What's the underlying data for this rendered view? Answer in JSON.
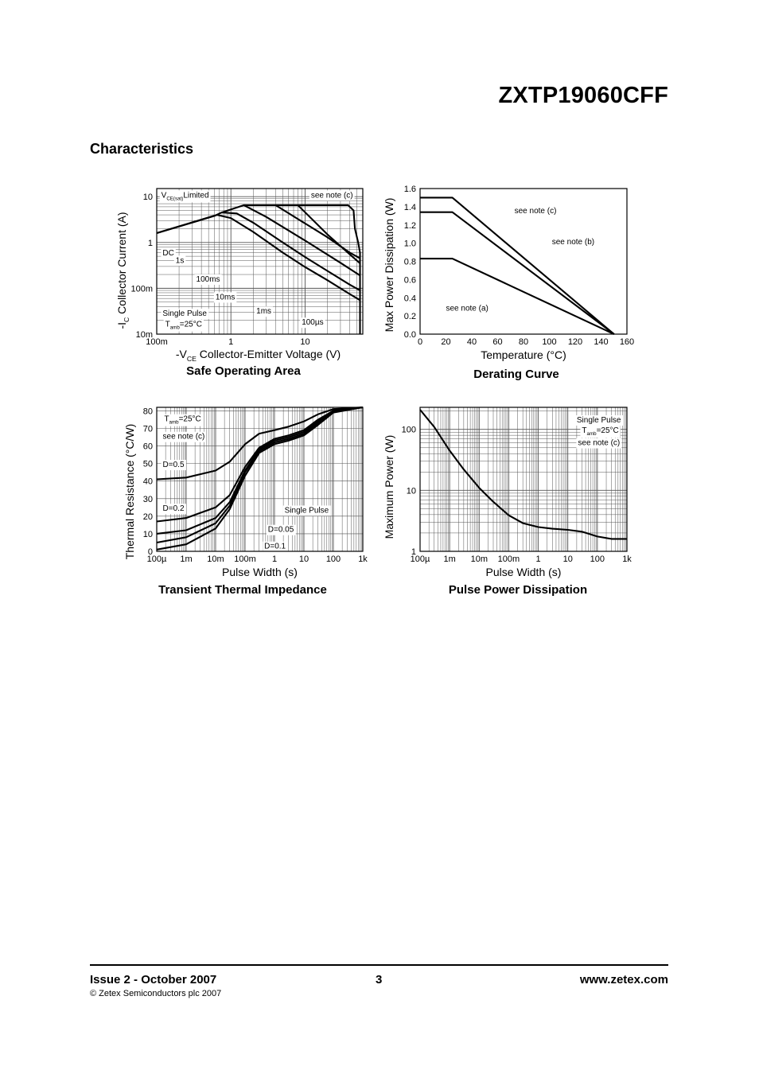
{
  "header": {
    "part_number": "ZXTP19060CFF",
    "section_title": "Characteristics"
  },
  "footer": {
    "issue": "Issue 2 - October 2007",
    "copyright": "© Zetex Semiconductors plc 2007",
    "page": "3",
    "website": "www.zetex.com"
  },
  "chart_data": [
    {
      "id": "soa",
      "type": "line",
      "title": "Safe Operating Area",
      "xlabel_prefix": "-V",
      "xlabel_sub": "CE",
      "xlabel": "Collector-Emitter Voltage (V)",
      "ylabel_prefix": "-I",
      "ylabel_sub": "C",
      "ylabel": "Collector Current (A)",
      "xscale": "log",
      "yscale": "log",
      "xlim": [
        0.1,
        60
      ],
      "ylim": [
        0.01,
        15
      ],
      "xticks": [
        {
          "v": 0.1,
          "label": "100m"
        },
        {
          "v": 1,
          "label": "1"
        },
        {
          "v": 10,
          "label": "10"
        }
      ],
      "yticks": [
        {
          "v": 0.01,
          "label": "10m"
        },
        {
          "v": 0.1,
          "label": "100m"
        },
        {
          "v": 1,
          "label": "1"
        },
        {
          "v": 10,
          "label": "10"
        }
      ],
      "grid": true,
      "series": [
        {
          "label": "DC",
          "points": [
            [
              0.1,
              1.6
            ],
            [
              0.65,
              4.0
            ],
            [
              1.0,
              3.4
            ],
            [
              2,
              1.7
            ],
            [
              5,
              0.6
            ],
            [
              10,
              0.29
            ],
            [
              20,
              0.15
            ],
            [
              40,
              0.075
            ],
            [
              55,
              0.055
            ]
          ]
        },
        {
          "label": "1s",
          "points": [
            [
              0.1,
              1.6
            ],
            [
              0.6,
              3.8
            ],
            [
              0.75,
              4.5
            ],
            [
              1.2,
              4.3
            ],
            [
              2,
              2.7
            ],
            [
              5,
              1.0
            ],
            [
              10,
              0.48
            ],
            [
              20,
              0.24
            ],
            [
              40,
              0.12
            ],
            [
              55,
              0.09
            ]
          ]
        },
        {
          "label": "100ms",
          "points": [
            [
              0.75,
              4.5
            ],
            [
              1.5,
              6.5
            ],
            [
              3,
              3.6
            ],
            [
              10,
              1.1
            ],
            [
              30,
              0.36
            ],
            [
              55,
              0.19
            ]
          ]
        },
        {
          "label": "10ms",
          "points": [
            [
              1.5,
              6.5
            ],
            [
              4,
              6.5
            ],
            [
              10,
              2.6
            ],
            [
              20,
              1.3
            ],
            [
              40,
              0.6
            ],
            [
              55,
              0.45
            ]
          ]
        },
        {
          "label": "1ms",
          "points": [
            [
              4,
              6.5
            ],
            [
              8,
              6.5
            ],
            [
              20,
              1.5
            ],
            [
              40,
              0.55
            ],
            [
              55,
              0.35
            ]
          ]
        },
        {
          "label": "100µs",
          "points": [
            [
              8,
              6.5
            ],
            [
              38,
              6.5
            ],
            [
              45,
              5.0
            ],
            [
              47,
              2.0
            ],
            [
              52,
              1.0
            ],
            [
              55,
              0.6
            ],
            [
              55,
              0.01
            ]
          ]
        }
      ],
      "annotations": [
        {
          "prefix": "V",
          "sub": "CE(sat)",
          "text": "Limited",
          "x": 0.115,
          "y": 9.5
        },
        {
          "text": "see note (c)",
          "x": 12,
          "y": 9.5
        },
        {
          "text": "DC",
          "x": 0.12,
          "y": 0.52
        },
        {
          "text": "1s",
          "x": 0.18,
          "y": 0.36
        },
        {
          "text": "100ms",
          "x": 0.34,
          "y": 0.14
        },
        {
          "text": "10ms",
          "x": 0.62,
          "y": 0.057
        },
        {
          "text": "1ms",
          "x": 2.2,
          "y": 0.028
        },
        {
          "text": "100µs",
          "x": 9,
          "y": 0.016
        },
        {
          "text": "Single Pulse",
          "x": 0.12,
          "y": 0.025
        },
        {
          "prefix": "T",
          "sub": "amb",
          "text": "=25°C",
          "x": 0.13,
          "y": 0.0145
        }
      ]
    },
    {
      "id": "derating",
      "type": "line",
      "title": "Derating Curve",
      "xlabel": "Temperature (°C)",
      "ylabel": "Max Power Dissipation (W)",
      "xlim": [
        0,
        160
      ],
      "ylim": [
        0,
        1.6
      ],
      "xticks": [
        0,
        20,
        40,
        60,
        80,
        100,
        120,
        140,
        160
      ],
      "yticks": [
        {
          "v": 0.0,
          "label": "0.0"
        },
        {
          "v": 0.2,
          "label": "0.2"
        },
        {
          "v": 0.4,
          "label": "0.4"
        },
        {
          "v": 0.6,
          "label": "0.6"
        },
        {
          "v": 0.8,
          "label": "0.8"
        },
        {
          "v": 1.0,
          "label": "1.0"
        },
        {
          "v": 1.2,
          "label": "1.2"
        },
        {
          "v": 1.4,
          "label": "1.4"
        },
        {
          "v": 1.6,
          "label": "1.6"
        }
      ],
      "grid": false,
      "series": [
        {
          "label": "see note (c)",
          "points": [
            [
              0,
              1.5
            ],
            [
              25,
              1.5
            ],
            [
              150,
              0
            ]
          ]
        },
        {
          "label": "see note (b)",
          "points": [
            [
              0,
              1.34
            ],
            [
              25,
              1.34
            ],
            [
              150,
              0
            ]
          ]
        },
        {
          "label": "see note (a)",
          "points": [
            [
              0,
              0.83
            ],
            [
              25,
              0.83
            ],
            [
              150,
              0
            ]
          ]
        }
      ],
      "annotations": [
        {
          "text": "see note (c)",
          "x": 73,
          "y": 1.33
        },
        {
          "text": "see note (b)",
          "x": 102,
          "y": 0.99
        },
        {
          "text": "see note (a)",
          "x": 20,
          "y": 0.26
        }
      ]
    },
    {
      "id": "transient",
      "type": "line",
      "title": "Transient Thermal Impedance",
      "xlabel": "Pulse Width (s)",
      "ylabel": "Thermal Resistance (°C/W)",
      "xscale": "log",
      "xlim": [
        0.0001,
        1000
      ],
      "ylim": [
        0,
        82
      ],
      "xticks": [
        {
          "v": 0.0001,
          "label": "100µ"
        },
        {
          "v": 0.001,
          "label": "1m"
        },
        {
          "v": 0.01,
          "label": "10m"
        },
        {
          "v": 0.1,
          "label": "100m"
        },
        {
          "v": 1,
          "label": "1"
        },
        {
          "v": 10,
          "label": "10"
        },
        {
          "v": 100,
          "label": "100"
        },
        {
          "v": 1000,
          "label": "1k"
        }
      ],
      "yticks": [
        {
          "v": 0,
          "label": "0"
        },
        {
          "v": 10,
          "label": "10"
        },
        {
          "v": 20,
          "label": "20"
        },
        {
          "v": 30,
          "label": "30"
        },
        {
          "v": 40,
          "label": "40"
        },
        {
          "v": 50,
          "label": "50"
        },
        {
          "v": 60,
          "label": "60"
        },
        {
          "v": 70,
          "label": "70"
        },
        {
          "v": 80,
          "label": "80"
        }
      ],
      "grid": true,
      "series": [
        {
          "label": "D=0.5",
          "points": [
            [
              0.0001,
              41
            ],
            [
              0.001,
              42
            ],
            [
              0.01,
              46
            ],
            [
              0.03,
              51
            ],
            [
              0.1,
              61
            ],
            [
              0.3,
              67
            ],
            [
              1,
              69
            ],
            [
              3,
              71
            ],
            [
              10,
              74
            ],
            [
              30,
              78
            ],
            [
              100,
              81
            ],
            [
              1000,
              82
            ]
          ]
        },
        {
          "label": "D=0.2",
          "points": [
            [
              0.0001,
              17
            ],
            [
              0.001,
              19
            ],
            [
              0.01,
              25
            ],
            [
              0.03,
              32
            ],
            [
              0.1,
              48
            ],
            [
              0.3,
              59
            ],
            [
              1,
              64
            ],
            [
              3,
              66
            ],
            [
              10,
              69
            ],
            [
              30,
              75
            ],
            [
              100,
              80
            ],
            [
              1000,
              82
            ]
          ]
        },
        {
          "label": "D=0.1",
          "points": [
            [
              0.0001,
              10
            ],
            [
              0.001,
              12
            ],
            [
              0.01,
              19
            ],
            [
              0.03,
              28
            ],
            [
              0.1,
              46
            ],
            [
              0.3,
              58
            ],
            [
              1,
              63
            ],
            [
              3,
              65
            ],
            [
              10,
              68
            ],
            [
              30,
              74
            ],
            [
              100,
              80
            ],
            [
              1000,
              82
            ]
          ]
        },
        {
          "label": "D=0.05",
          "points": [
            [
              0.0001,
              5
            ],
            [
              0.001,
              8
            ],
            [
              0.01,
              16
            ],
            [
              0.03,
              26
            ],
            [
              0.1,
              45
            ],
            [
              0.3,
              57
            ],
            [
              1,
              62
            ],
            [
              3,
              64
            ],
            [
              10,
              67
            ],
            [
              30,
              73
            ],
            [
              100,
              80
            ],
            [
              1000,
              82
            ]
          ]
        },
        {
          "label": "Single Pulse",
          "points": [
            [
              0.0001,
              1
            ],
            [
              0.001,
              4
            ],
            [
              0.01,
              13
            ],
            [
              0.03,
              24
            ],
            [
              0.1,
              43
            ],
            [
              0.3,
              56
            ],
            [
              1,
              61
            ],
            [
              3,
              63
            ],
            [
              10,
              66
            ],
            [
              30,
              72
            ],
            [
              100,
              79
            ],
            [
              1000,
              82
            ]
          ]
        }
      ],
      "annotations": [
        {
          "prefix": "T",
          "sub": "amb",
          "text": "=25°C",
          "x": 0.00018,
          "y": 74
        },
        {
          "text": "see note (c)",
          "x": 0.00016,
          "y": 64
        },
        {
          "text": "D=0.5",
          "x": 0.00016,
          "y": 48
        },
        {
          "text": "D=0.2",
          "x": 0.00016,
          "y": 23
        },
        {
          "text": "Single Pulse",
          "x": 2.2,
          "y": 22
        },
        {
          "text": "D=0.05",
          "x": 0.6,
          "y": 11
        },
        {
          "text": "D=0.1",
          "x": 0.45,
          "y": 1.5
        }
      ]
    },
    {
      "id": "pulse_power",
      "type": "line",
      "title": "Pulse Power Dissipation",
      "xlabel": "Pulse Width (s)",
      "ylabel": "Maximum Power (W)",
      "xscale": "log",
      "yscale": "log",
      "xlim": [
        0.0001,
        1000
      ],
      "ylim": [
        1,
        230
      ],
      "xticks": [
        {
          "v": 0.0001,
          "label": "100µ"
        },
        {
          "v": 0.001,
          "label": "1m"
        },
        {
          "v": 0.01,
          "label": "10m"
        },
        {
          "v": 0.1,
          "label": "100m"
        },
        {
          "v": 1,
          "label": "1"
        },
        {
          "v": 10,
          "label": "10"
        },
        {
          "v": 100,
          "label": "100"
        },
        {
          "v": 1000,
          "label": "1k"
        }
      ],
      "yticks": [
        {
          "v": 1,
          "label": "1"
        },
        {
          "v": 10,
          "label": "10"
        },
        {
          "v": 100,
          "label": "100"
        }
      ],
      "grid": true,
      "series": [
        {
          "label": "",
          "points": [
            [
              0.0001,
              210
            ],
            [
              0.0003,
              110
            ],
            [
              0.001,
              45
            ],
            [
              0.003,
              22
            ],
            [
              0.01,
              11
            ],
            [
              0.03,
              6.5
            ],
            [
              0.1,
              3.9
            ],
            [
              0.3,
              2.9
            ],
            [
              1,
              2.5
            ],
            [
              3,
              2.35
            ],
            [
              10,
              2.25
            ],
            [
              30,
              2.1
            ],
            [
              100,
              1.75
            ],
            [
              300,
              1.6
            ],
            [
              1000,
              1.6
            ]
          ]
        }
      ],
      "annotations": [
        {
          "text": "Single Pulse",
          "x": 20,
          "y": 130
        },
        {
          "prefix": "T",
          "sub": "amb",
          "text": "=25°C",
          "x": 30,
          "y": 88
        },
        {
          "text": "see note (c)",
          "x": 22,
          "y": 55
        }
      ]
    }
  ]
}
